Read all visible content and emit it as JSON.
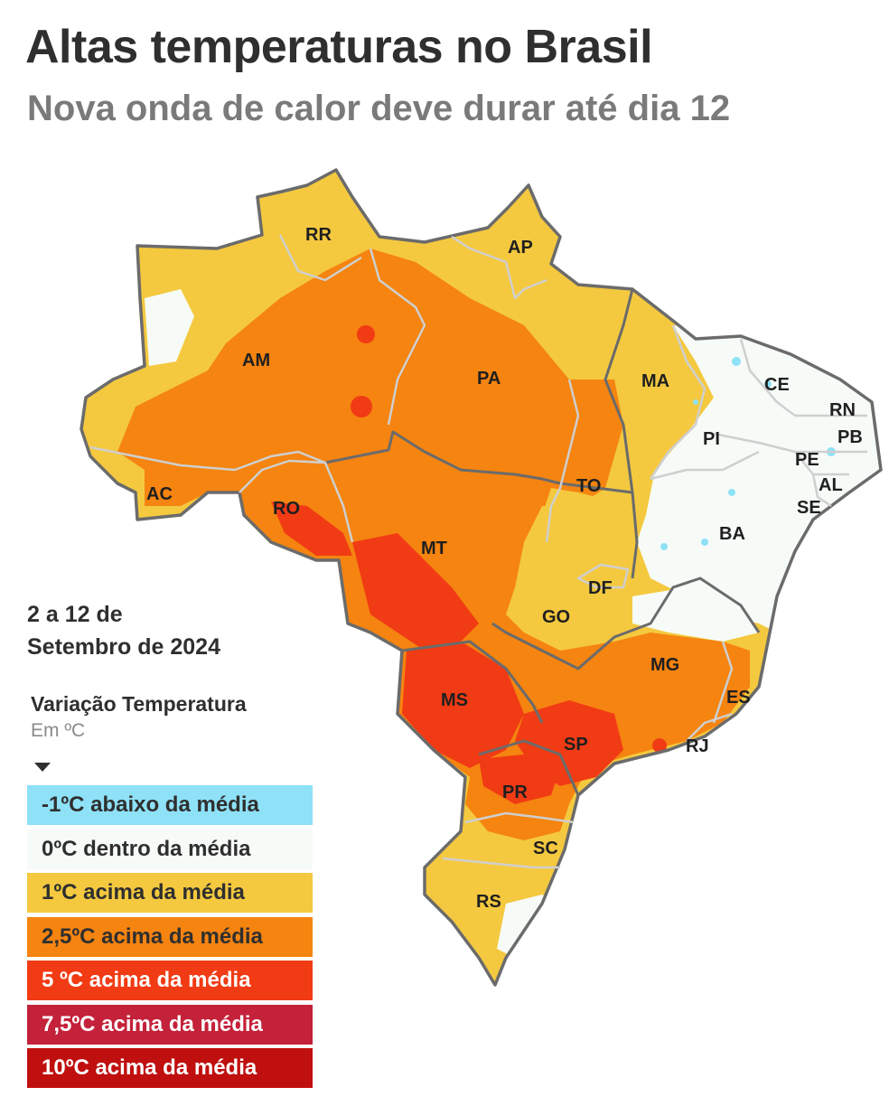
{
  "header": {
    "title": "Altas temperaturas no Brasil",
    "subtitle": "Nova onda de calor deve durar até dia 12"
  },
  "period": {
    "line1": "2 a 12 de",
    "line2": "Setembro de 2024"
  },
  "legend": {
    "title": "Variação Temperatura",
    "unit": "Em ºC",
    "items": [
      {
        "label": "-1ºC abaixo da média",
        "color": "#8ee1f7",
        "text_color": "#2f2f2f"
      },
      {
        "label": "0ºC dentro da média",
        "color": "#f7fbf7",
        "text_color": "#2f2f2f"
      },
      {
        "label": "1ºC acima da média",
        "color": "#f4c93f",
        "text_color": "#2f2f2f"
      },
      {
        "label": "2,5ºC acima da média",
        "color": "#f58410",
        "text_color": "#2f2f2f"
      },
      {
        "label": "5 ºC acima da média",
        "color": "#f13b14",
        "text_color": "#ffffff"
      },
      {
        "label": "7,5ºC acima da média",
        "color": "#c4213a",
        "text_color": "#ffffff"
      },
      {
        "label": "10ºC acima da média",
        "color": "#c00f0f",
        "text_color": "#ffffff"
      }
    ]
  },
  "states": {
    "RR": "RR",
    "AP": "AP",
    "AM": "AM",
    "PA": "PA",
    "MA": "MA",
    "CE": "CE",
    "RN": "RN",
    "PB": "PB",
    "PI": "PI",
    "PE": "PE",
    "AL": "AL",
    "SE": "SE",
    "AC": "AC",
    "RO": "RO",
    "TO": "TO",
    "BA": "BA",
    "MT": "MT",
    "DF": "DF",
    "GO": "GO",
    "MG": "MG",
    "ES": "ES",
    "MS": "MS",
    "SP": "SP",
    "RJ": "RJ",
    "PR": "PR",
    "SC": "SC",
    "RS": "RS"
  }
}
